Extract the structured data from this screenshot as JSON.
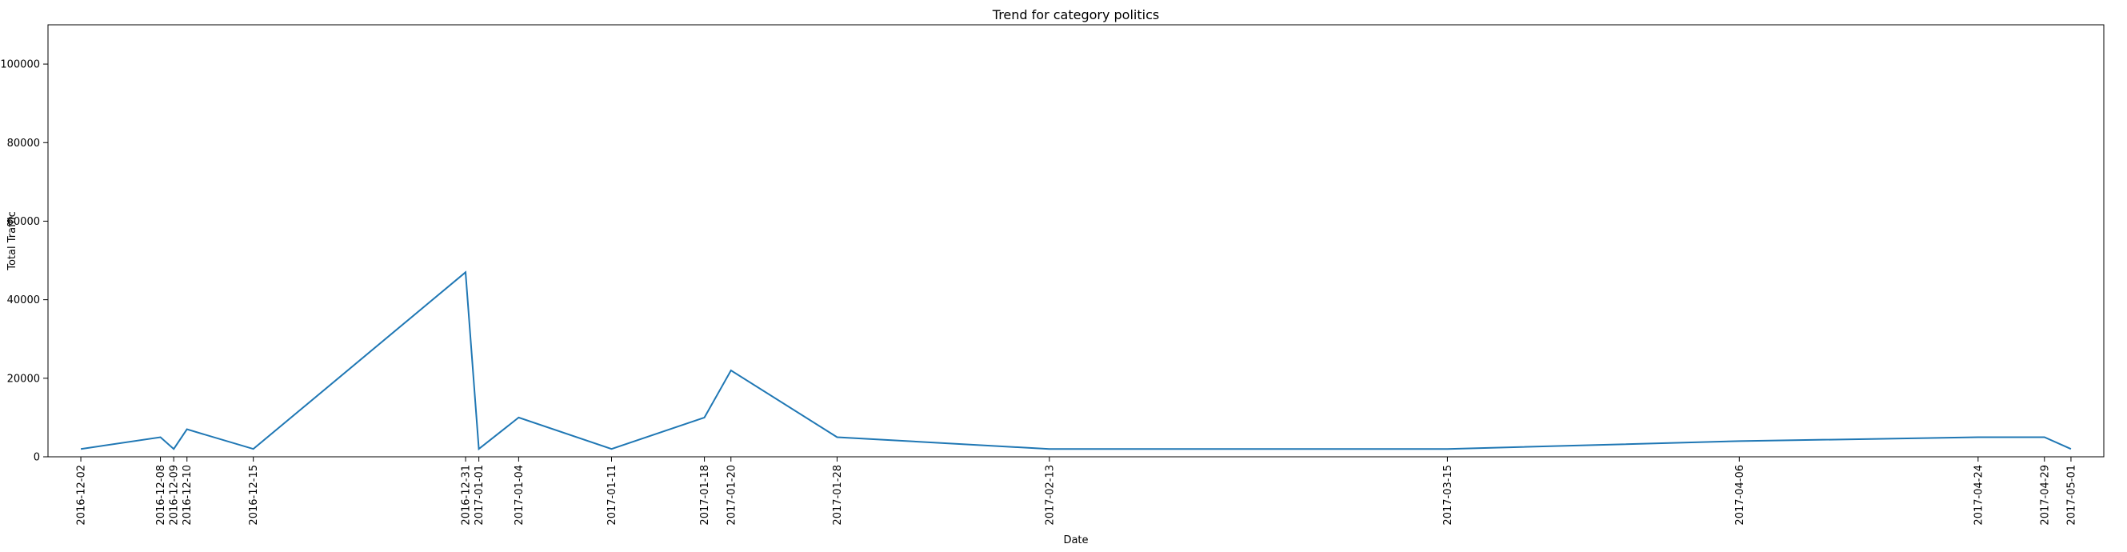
{
  "chart_data": {
    "type": "line",
    "title": "Trend for category politics",
    "xlabel": "Date",
    "ylabel": "Total Traffic",
    "ylim": [
      0,
      110000
    ],
    "yticks": [
      0,
      20000,
      40000,
      60000,
      80000,
      100000
    ],
    "grid": false,
    "color": "#1f77b4",
    "x": [
      "2016-12-02",
      "2016-12-08",
      "2016-12-09",
      "2016-12-10",
      "2016-12-15",
      "2016-12-31",
      "2017-01-01",
      "2017-01-04",
      "2017-01-11",
      "2017-01-18",
      "2017-01-20",
      "2017-01-28",
      "2017-02-13",
      "2017-03-15",
      "2017-04-06",
      "2017-04-24",
      "2017-04-29",
      "2017-05-01"
    ],
    "values": [
      2000,
      5000,
      2000,
      7000,
      2000,
      47000,
      2000,
      10000,
      2000,
      10000,
      22000,
      5000,
      2000,
      2000,
      4000,
      5000,
      5000,
      2000
    ]
  }
}
